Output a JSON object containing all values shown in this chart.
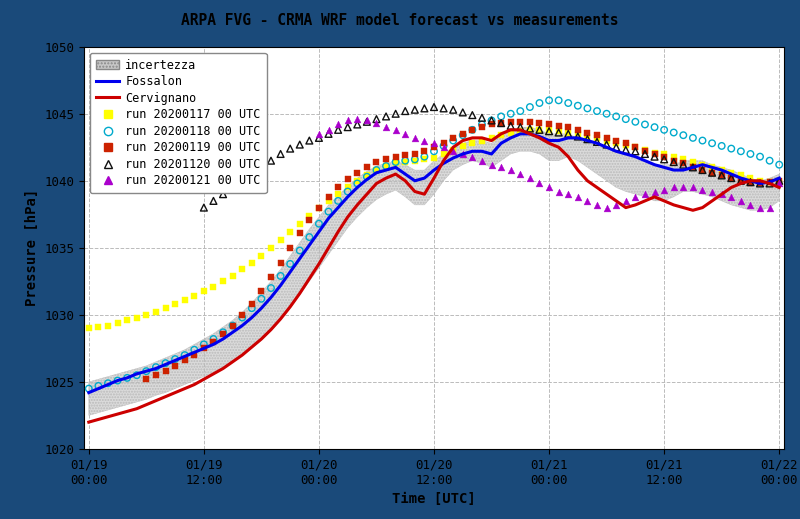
{
  "title": "ARPA FVG - CRMA WRF model forecast vs measurements",
  "xlabel": "Time [UTC]",
  "ylabel": "Pressure [hPa]",
  "ylim": [
    1020,
    1050
  ],
  "background_outer": "#1a4a7a",
  "background_inner": "#ffffff",
  "grid_color": "#bbbbbb",
  "grid_style": "--",
  "font_family": "monospace",
  "title_fontsize": 10.5,
  "label_fontsize": 10,
  "tick_fontsize": 9,
  "legend_fontsize": 8.5,
  "fossalon_color": "#0000ee",
  "cervignano_color": "#cc0000",
  "uncertainty_color": "#c8c8c8",
  "uncertainty_alpha": 0.65,
  "run117_color": "#ffff00",
  "run118_color": "#00aacc",
  "run119_color": "#cc2200",
  "run120_color": "#111111",
  "run121_color": "#aa00cc",
  "tick_labels": [
    "01/19\n00:00",
    "01/19\n12:00",
    "01/20\n00:00",
    "01/20\n12:00",
    "01/21\n00:00",
    "01/21\n12:00",
    "01/22\n00:00"
  ],
  "tick_hours": [
    0,
    12,
    24,
    36,
    48,
    60,
    72
  ],
  "fossalon_t": [
    0,
    1,
    2,
    3,
    4,
    5,
    6,
    7,
    8,
    9,
    10,
    11,
    12,
    13,
    14,
    15,
    16,
    17,
    18,
    19,
    20,
    21,
    22,
    23,
    24,
    25,
    26,
    27,
    28,
    29,
    30,
    31,
    32,
    33,
    34,
    35,
    36,
    37,
    38,
    39,
    40,
    41,
    42,
    43,
    44,
    45,
    46,
    47,
    48,
    49,
    50,
    51,
    52,
    53,
    54,
    55,
    56,
    57,
    58,
    59,
    60,
    61,
    62,
    63,
    64,
    65,
    66,
    67,
    68,
    69,
    70,
    71,
    72
  ],
  "fossalon": [
    1024.2,
    1024.5,
    1024.8,
    1025.1,
    1025.3,
    1025.6,
    1025.8,
    1026.0,
    1026.3,
    1026.6,
    1026.9,
    1027.2,
    1027.5,
    1027.8,
    1028.2,
    1028.7,
    1029.2,
    1029.8,
    1030.5,
    1031.3,
    1032.2,
    1033.2,
    1034.2,
    1035.2,
    1036.2,
    1037.2,
    1038.0,
    1038.8,
    1039.5,
    1040.1,
    1040.6,
    1040.8,
    1041.0,
    1040.5,
    1040.0,
    1040.2,
    1040.8,
    1041.3,
    1041.7,
    1042.0,
    1042.2,
    1042.2,
    1042.0,
    1042.8,
    1043.2,
    1043.5,
    1043.5,
    1043.3,
    1043.0,
    1043.0,
    1043.2,
    1043.2,
    1043.0,
    1042.8,
    1042.5,
    1042.2,
    1042.0,
    1041.8,
    1041.5,
    1041.2,
    1041.0,
    1040.8,
    1040.8,
    1041.0,
    1041.2,
    1041.0,
    1040.8,
    1040.5,
    1040.2,
    1040.0,
    1039.8,
    1039.9,
    1040.2
  ],
  "cervignano_t": [
    0,
    1,
    2,
    3,
    4,
    5,
    6,
    7,
    8,
    9,
    10,
    11,
    12,
    13,
    14,
    15,
    16,
    17,
    18,
    19,
    20,
    21,
    22,
    23,
    24,
    25,
    26,
    27,
    28,
    29,
    30,
    31,
    32,
    33,
    34,
    35,
    36,
    37,
    38,
    39,
    40,
    41,
    42,
    43,
    44,
    45,
    46,
    47,
    48,
    49,
    50,
    51,
    52,
    53,
    54,
    55,
    56,
    57,
    58,
    59,
    60,
    61,
    62,
    63,
    64,
    65,
    66,
    67,
    68,
    69,
    70,
    71,
    72
  ],
  "cervignano": [
    1022.0,
    1022.2,
    1022.4,
    1022.6,
    1022.8,
    1023.0,
    1023.3,
    1023.6,
    1023.9,
    1024.2,
    1024.5,
    1024.8,
    1025.2,
    1025.6,
    1026.0,
    1026.5,
    1027.0,
    1027.6,
    1028.2,
    1028.9,
    1029.7,
    1030.6,
    1031.6,
    1032.7,
    1033.8,
    1035.0,
    1036.2,
    1037.3,
    1038.2,
    1039.0,
    1039.8,
    1040.2,
    1040.5,
    1040.0,
    1039.2,
    1039.0,
    1040.2,
    1041.5,
    1042.5,
    1043.0,
    1043.2,
    1043.2,
    1043.0,
    1043.5,
    1043.8,
    1043.8,
    1043.5,
    1043.2,
    1042.8,
    1042.5,
    1041.8,
    1040.8,
    1040.0,
    1039.5,
    1039.0,
    1038.5,
    1038.0,
    1038.2,
    1038.5,
    1038.8,
    1038.5,
    1038.2,
    1038.0,
    1037.8,
    1038.0,
    1038.5,
    1039.0,
    1039.5,
    1039.8,
    1040.0,
    1040.0,
    1039.8,
    1039.5
  ],
  "uncertainty_t": [
    0,
    1,
    2,
    3,
    4,
    5,
    6,
    7,
    8,
    9,
    10,
    11,
    12,
    13,
    14,
    15,
    16,
    17,
    18,
    19,
    20,
    21,
    22,
    23,
    24,
    25,
    26,
    27,
    28,
    29,
    30,
    31,
    32,
    33,
    34,
    35,
    36,
    37,
    38,
    39,
    40,
    41,
    42,
    43,
    44,
    45,
    46,
    47,
    48,
    49,
    50,
    51,
    52,
    53,
    54,
    55,
    56,
    57,
    58,
    59,
    60,
    61,
    62,
    63,
    64,
    65,
    66,
    67,
    68,
    69,
    70,
    71,
    72
  ],
  "uncertainty_upper": [
    1025.0,
    1025.2,
    1025.4,
    1025.6,
    1025.8,
    1026.0,
    1026.2,
    1026.5,
    1026.8,
    1027.1,
    1027.4,
    1027.8,
    1028.2,
    1028.6,
    1029.1,
    1029.6,
    1030.2,
    1030.9,
    1031.7,
    1032.5,
    1033.4,
    1034.4,
    1035.4,
    1036.4,
    1037.3,
    1038.2,
    1038.9,
    1039.6,
    1040.2,
    1040.7,
    1041.1,
    1041.3,
    1041.5,
    1041.2,
    1040.8,
    1040.8,
    1041.5,
    1042.0,
    1042.5,
    1042.8,
    1043.0,
    1043.0,
    1042.8,
    1043.5,
    1043.8,
    1044.0,
    1044.0,
    1043.8,
    1043.5,
    1043.5,
    1043.5,
    1043.2,
    1043.0,
    1042.8,
    1042.5,
    1042.2,
    1042.0,
    1041.8,
    1041.5,
    1041.2,
    1041.2,
    1041.2,
    1041.5,
    1041.5,
    1041.5,
    1041.2,
    1041.0,
    1040.8,
    1040.5,
    1040.2,
    1040.0,
    1040.2,
    1040.5
  ],
  "uncertainty_lower": [
    1022.5,
    1022.7,
    1022.9,
    1023.1,
    1023.3,
    1023.5,
    1023.7,
    1024.0,
    1024.2,
    1024.5,
    1024.8,
    1025.1,
    1025.4,
    1025.7,
    1026.1,
    1026.5,
    1027.0,
    1027.5,
    1028.1,
    1028.8,
    1029.6,
    1030.5,
    1031.5,
    1032.5,
    1033.5,
    1034.5,
    1035.5,
    1036.5,
    1037.3,
    1038.0,
    1038.6,
    1039.0,
    1039.3,
    1038.8,
    1038.2,
    1038.2,
    1039.0,
    1040.0,
    1040.8,
    1041.2,
    1041.5,
    1041.3,
    1041.0,
    1041.5,
    1042.0,
    1042.2,
    1042.2,
    1042.0,
    1041.5,
    1041.5,
    1041.8,
    1041.5,
    1041.0,
    1040.5,
    1040.0,
    1039.5,
    1039.2,
    1039.0,
    1038.8,
    1038.5,
    1038.5,
    1038.8,
    1039.2,
    1039.2,
    1039.0,
    1038.8,
    1038.5,
    1038.2,
    1038.0,
    1037.8,
    1037.8,
    1038.0,
    1038.5
  ],
  "run117_t": [
    0,
    1,
    2,
    3,
    4,
    5,
    6,
    7,
    8,
    9,
    10,
    11,
    12,
    13,
    14,
    15,
    16,
    17,
    18,
    19,
    20,
    21,
    22,
    23,
    24,
    25,
    26,
    27,
    28,
    29,
    30,
    31,
    32,
    33,
    34,
    35,
    36,
    37,
    38,
    39,
    40,
    41,
    42,
    43,
    44,
    45,
    46,
    47,
    48,
    49,
    50,
    51,
    52,
    53,
    54,
    55,
    56,
    57,
    58,
    59,
    60,
    61,
    62,
    63,
    64,
    65,
    66,
    67,
    68,
    69,
    70,
    71,
    72
  ],
  "run117_v": [
    1029.0,
    1029.1,
    1029.2,
    1029.4,
    1029.6,
    1029.8,
    1030.0,
    1030.2,
    1030.5,
    1030.8,
    1031.1,
    1031.4,
    1031.8,
    1032.1,
    1032.5,
    1032.9,
    1033.4,
    1033.9,
    1034.4,
    1035.0,
    1035.6,
    1036.2,
    1036.8,
    1037.4,
    1038.0,
    1038.5,
    1039.0,
    1039.5,
    1040.0,
    1040.4,
    1040.8,
    1041.1,
    1041.3,
    1041.4,
    1041.5,
    1041.6,
    1041.7,
    1042.0,
    1042.3,
    1042.6,
    1042.8,
    1043.0,
    1043.2,
    1043.4,
    1043.6,
    1043.7,
    1043.8,
    1043.8,
    1043.8,
    1043.7,
    1043.6,
    1043.5,
    1043.3,
    1043.2,
    1043.0,
    1042.8,
    1042.7,
    1042.5,
    1042.3,
    1042.1,
    1042.0,
    1041.8,
    1041.6,
    1041.4,
    1041.2,
    1041.0,
    1040.8,
    1040.6,
    1040.4,
    1040.2,
    1040.0,
    1039.9,
    1039.8
  ],
  "run118_t": [
    0,
    1,
    2,
    3,
    4,
    5,
    6,
    7,
    8,
    9,
    10,
    11,
    12,
    13,
    14,
    15,
    16,
    17,
    18,
    19,
    20,
    21,
    22,
    23,
    24,
    25,
    26,
    27,
    28,
    29,
    30,
    31,
    32,
    33,
    34,
    35,
    36,
    37,
    38,
    39,
    40,
    41,
    42,
    43,
    44,
    45,
    46,
    47,
    48,
    49,
    50,
    51,
    52,
    53,
    54,
    55,
    56,
    57,
    58,
    59,
    60,
    61,
    62,
    63,
    64,
    65,
    66,
    67,
    68,
    69,
    70,
    71,
    72
  ],
  "run118_v": [
    1024.5,
    1024.7,
    1024.9,
    1025.1,
    1025.3,
    1025.5,
    1025.8,
    1026.1,
    1026.4,
    1026.7,
    1027.0,
    1027.4,
    1027.8,
    1028.2,
    1028.7,
    1029.2,
    1029.8,
    1030.5,
    1031.2,
    1032.0,
    1032.9,
    1033.8,
    1034.8,
    1035.8,
    1036.8,
    1037.7,
    1038.5,
    1039.2,
    1039.8,
    1040.3,
    1040.8,
    1041.1,
    1041.4,
    1041.5,
    1041.6,
    1041.8,
    1042.2,
    1042.6,
    1043.0,
    1043.4,
    1043.8,
    1044.2,
    1044.5,
    1044.8,
    1045.0,
    1045.2,
    1045.5,
    1045.8,
    1046.0,
    1046.0,
    1045.8,
    1045.6,
    1045.4,
    1045.2,
    1045.0,
    1044.8,
    1044.6,
    1044.4,
    1044.2,
    1044.0,
    1043.8,
    1043.6,
    1043.4,
    1043.2,
    1043.0,
    1042.8,
    1042.6,
    1042.4,
    1042.2,
    1042.0,
    1041.8,
    1041.5,
    1041.2
  ],
  "run119_t": [
    6,
    7,
    8,
    9,
    10,
    11,
    12,
    13,
    14,
    15,
    16,
    17,
    18,
    19,
    20,
    21,
    22,
    23,
    24,
    25,
    26,
    27,
    28,
    29,
    30,
    31,
    32,
    33,
    34,
    35,
    36,
    37,
    38,
    39,
    40,
    41,
    42,
    43,
    44,
    45,
    46,
    47,
    48,
    49,
    50,
    51,
    52,
    53,
    54,
    55,
    56,
    57,
    58,
    59,
    60,
    61,
    62,
    63,
    64,
    65,
    66,
    67,
    68,
    69,
    70,
    71,
    72
  ],
  "run119_v": [
    1025.2,
    1025.5,
    1025.8,
    1026.2,
    1026.6,
    1027.0,
    1027.5,
    1028.0,
    1028.6,
    1029.2,
    1030.0,
    1030.8,
    1031.8,
    1032.8,
    1033.9,
    1035.0,
    1036.1,
    1037.1,
    1038.0,
    1038.8,
    1039.5,
    1040.1,
    1040.6,
    1041.0,
    1041.4,
    1041.6,
    1041.8,
    1041.9,
    1042.0,
    1042.2,
    1042.5,
    1042.8,
    1043.2,
    1043.5,
    1043.8,
    1044.0,
    1044.2,
    1044.3,
    1044.4,
    1044.4,
    1044.4,
    1044.3,
    1044.2,
    1044.1,
    1044.0,
    1043.8,
    1043.6,
    1043.4,
    1043.2,
    1043.0,
    1042.8,
    1042.5,
    1042.2,
    1042.0,
    1041.8,
    1041.5,
    1041.3,
    1041.0,
    1040.8,
    1040.6,
    1040.4,
    1040.2,
    1040.0,
    1039.8,
    1039.8,
    1039.9,
    1040.0
  ],
  "run120_t": [
    12,
    13,
    14,
    15,
    16,
    17,
    18,
    19,
    20,
    21,
    22,
    23,
    24,
    25,
    26,
    27,
    28,
    29,
    30,
    31,
    32,
    33,
    34,
    35,
    36,
    37,
    38,
    39,
    40,
    41,
    42,
    43,
    44,
    45,
    46,
    47,
    48,
    49,
    50,
    51,
    52,
    53,
    54,
    55,
    56,
    57,
    58,
    59,
    60,
    61,
    62,
    63,
    64,
    65,
    66,
    67,
    68,
    69,
    70,
    71,
    72
  ],
  "run120_v": [
    1038.0,
    1038.5,
    1039.0,
    1039.5,
    1040.0,
    1040.5,
    1041.0,
    1041.5,
    1042.0,
    1042.4,
    1042.7,
    1043.0,
    1043.2,
    1043.5,
    1043.8,
    1044.0,
    1044.2,
    1044.4,
    1044.6,
    1044.8,
    1045.0,
    1045.2,
    1045.3,
    1045.4,
    1045.5,
    1045.4,
    1045.3,
    1045.1,
    1044.9,
    1044.7,
    1044.5,
    1044.3,
    1044.1,
    1044.0,
    1043.9,
    1043.8,
    1043.7,
    1043.6,
    1043.5,
    1043.3,
    1043.1,
    1042.9,
    1042.7,
    1042.5,
    1042.3,
    1042.2,
    1042.0,
    1041.8,
    1041.6,
    1041.4,
    1041.2,
    1041.0,
    1040.8,
    1040.6,
    1040.4,
    1040.2,
    1040.0,
    1039.9,
    1039.8,
    1039.8,
    1040.0
  ],
  "run121_t": [
    24,
    25,
    26,
    27,
    28,
    29,
    30,
    31,
    32,
    33,
    34,
    35,
    36,
    37,
    38,
    39,
    40,
    41,
    42,
    43,
    44,
    45,
    46,
    47,
    48,
    49,
    50,
    51,
    52,
    53,
    54,
    55,
    56,
    57,
    58,
    59,
    60,
    61,
    62,
    63,
    64,
    65,
    66,
    67,
    68,
    69,
    70,
    71,
    72
  ],
  "run121_v": [
    1043.5,
    1043.8,
    1044.2,
    1044.5,
    1044.6,
    1044.5,
    1044.3,
    1044.0,
    1043.8,
    1043.5,
    1043.2,
    1043.0,
    1042.8,
    1042.5,
    1042.2,
    1042.0,
    1041.8,
    1041.5,
    1041.2,
    1041.0,
    1040.8,
    1040.5,
    1040.2,
    1039.8,
    1039.5,
    1039.2,
    1039.0,
    1038.8,
    1038.5,
    1038.2,
    1038.0,
    1038.2,
    1038.5,
    1038.8,
    1039.0,
    1039.2,
    1039.3,
    1039.5,
    1039.5,
    1039.5,
    1039.3,
    1039.2,
    1039.0,
    1038.8,
    1038.5,
    1038.2,
    1038.0,
    1038.0,
    1039.8
  ]
}
